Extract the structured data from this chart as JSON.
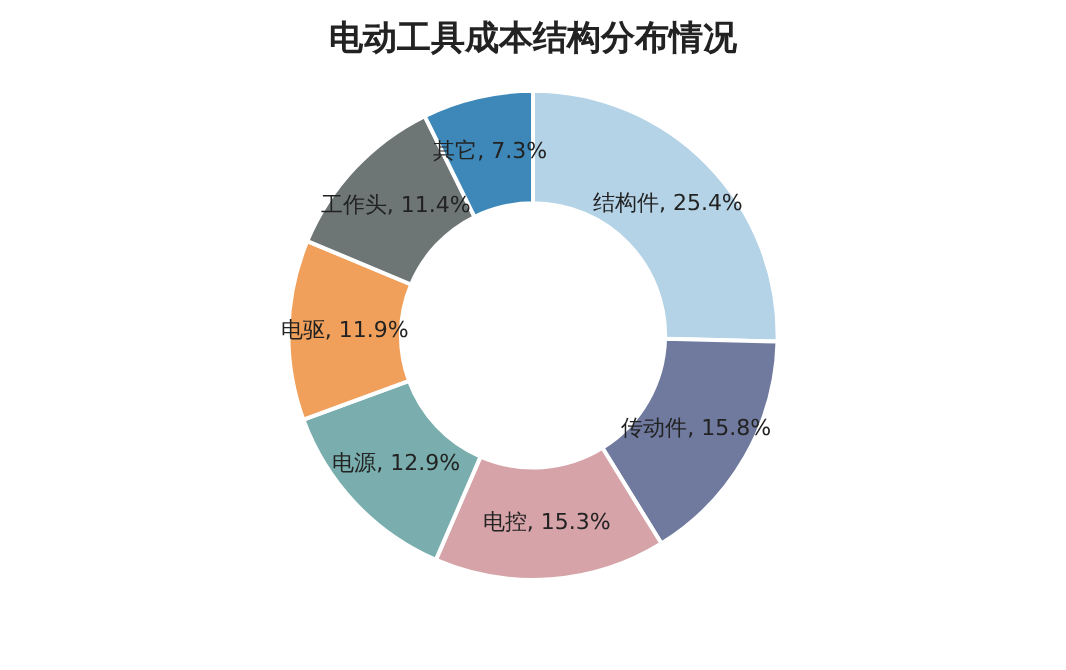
{
  "chart_data": {
    "type": "donut",
    "title": "电动工具成本结构分布情况",
    "categories": [
      "结构件",
      "传动件",
      "电控",
      "电源",
      "电驱",
      "工作头",
      "其它"
    ],
    "values": [
      25.4,
      15.8,
      15.3,
      12.9,
      11.9,
      11.4,
      7.3
    ],
    "colors": [
      "#b4d3e6",
      "#6f7a9e",
      "#d6a3a8",
      "#7aaeae",
      "#f0a05a",
      "#6d7575",
      "#3d88b8"
    ],
    "value_labels": [
      ", 25.4%",
      ", 15.8%",
      ", 15.3%",
      ", 12.9%",
      ", 11.9%",
      ", 11.4%",
      ", 7.3%"
    ],
    "legend": false
  }
}
